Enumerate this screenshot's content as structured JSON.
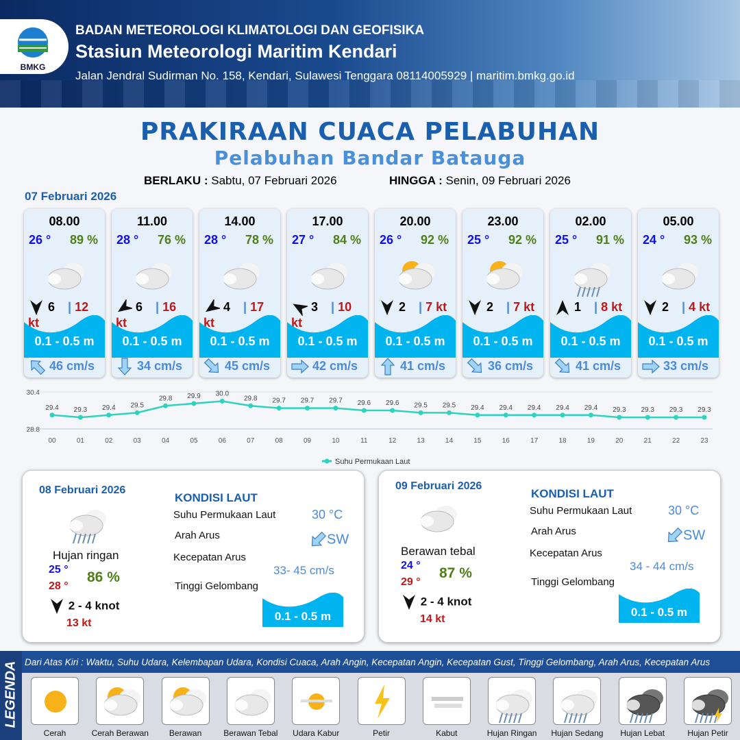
{
  "header": {
    "org": "BADAN METEOROLOGI KLIMATOLOGI DAN GEOFISIKA",
    "station": "Stasiun Meteorologi Maritim Kendari",
    "address": "Jalan Jendral Sudirman No. 158, Kendari, Sulawesi Tenggara  08114005929 | maritim.bmkg.go.id",
    "logo_text": "BMKG"
  },
  "title": "PRAKIRAAN CUACA PELABUHAN",
  "subtitle": "Pelabuhan Bandar Batauga",
  "validity": {
    "from_label": "BERLAKU :",
    "from": "Sabtu, 07 Februari 2026",
    "to_label": "HINGGA :",
    "to": "Senin, 09 Februari 2026"
  },
  "day1_label": "07 Februari 2026",
  "cards": [
    {
      "time": "08.00",
      "temp": "26 °",
      "hum": "89 %",
      "cond": "berawan-tebal",
      "wind_dir_deg": 180,
      "wind": "6",
      "gust": "12 kt",
      "wave": "0.1 - 0.5 m",
      "cur_dir_deg": 315,
      "cur": "46 cm/s"
    },
    {
      "time": "11.00",
      "temp": "28 °",
      "hum": "76 %",
      "cond": "berawan-tebal",
      "wind_dir_deg": 235,
      "wind": "6",
      "gust": "16 kt",
      "wave": "0.1 - 0.5 m",
      "cur_dir_deg": 180,
      "cur": "34 cm/s"
    },
    {
      "time": "14.00",
      "temp": "28 °",
      "hum": "78 %",
      "cond": "berawan-tebal",
      "wind_dir_deg": 235,
      "wind": "4",
      "gust": "17 kt",
      "wave": "0.1 - 0.5 m",
      "cur_dir_deg": 135,
      "cur": "45 cm/s"
    },
    {
      "time": "17.00",
      "temp": "27 °",
      "hum": "84 %",
      "cond": "berawan-tebal",
      "wind_dir_deg": 300,
      "wind": "3",
      "gust": "10 kt",
      "wave": "0.1 - 0.5 m",
      "cur_dir_deg": 90,
      "cur": "42 cm/s"
    },
    {
      "time": "20.00",
      "temp": "26 °",
      "hum": "92 %",
      "cond": "cerah-berawan",
      "wind_dir_deg": 180,
      "wind": "2",
      "gust": "7 kt",
      "wave": "0.1 - 0.5 m",
      "cur_dir_deg": 0,
      "cur": "41 cm/s"
    },
    {
      "time": "23.00",
      "temp": "25 °",
      "hum": "92 %",
      "cond": "cerah-berawan",
      "wind_dir_deg": 180,
      "wind": "2",
      "gust": "7 kt",
      "wave": "0.1 - 0.5 m",
      "cur_dir_deg": 135,
      "cur": "36 cm/s"
    },
    {
      "time": "02.00",
      "temp": "25 °",
      "hum": "91 %",
      "cond": "hujan-ringan",
      "wind_dir_deg": 0,
      "wind": "1",
      "gust": "8 kt",
      "wave": "0.1 - 0.5 m",
      "cur_dir_deg": 135,
      "cur": "41 cm/s"
    },
    {
      "time": "05.00",
      "temp": "24 °",
      "hum": "93 %",
      "cond": "berawan-tebal",
      "wind_dir_deg": 180,
      "wind": "2",
      "gust": "4 kt",
      "wave": "0.1 - 0.5 m",
      "cur_dir_deg": 90,
      "cur": "33 cm/s"
    }
  ],
  "chart_data": {
    "type": "line",
    "categories": [
      "00",
      "01",
      "02",
      "03",
      "04",
      "05",
      "06",
      "07",
      "08",
      "09",
      "10",
      "11",
      "12",
      "13",
      "14",
      "15",
      "16",
      "17",
      "18",
      "19",
      "20",
      "21",
      "22",
      "23"
    ],
    "series": [
      {
        "name": "Suhu Permukaan Laut",
        "values": [
          29.4,
          29.3,
          29.4,
          29.5,
          29.8,
          29.9,
          30.0,
          29.8,
          29.7,
          29.7,
          29.7,
          29.6,
          29.6,
          29.5,
          29.5,
          29.4,
          29.4,
          29.4,
          29.4,
          29.4,
          29.3,
          29.3,
          29.3,
          29.3
        ],
        "color": "#2ed3c0"
      }
    ],
    "ylim": [
      28.8,
      30.4
    ],
    "yticks": [
      "30.4",
      "28.8"
    ],
    "legend": "bottom",
    "grid": true
  },
  "panels": [
    {
      "date": "08 Februari 2026",
      "cond": "Hujan ringan",
      "icon": "hujan-ringan",
      "tmin": "25 °",
      "tmax": "28 °",
      "hum": "86 %",
      "wind": "2  - 4 knot",
      "gust": "13 kt",
      "heading": "KONDISI LAUT",
      "sst_label": "Suhu Permukaan Laut",
      "sst": "30 °C",
      "dir_label": "Arah Arus",
      "dir": "SW",
      "speed_label": "Kecepatan Arus",
      "speed": "33- 45 cm/s",
      "wave_label": "Tinggi Gelombang",
      "wave": "0.1 - 0.5 m"
    },
    {
      "date": "09 Februari 2026",
      "cond": "Berawan tebal",
      "icon": "berawan-tebal",
      "tmin": "24 °",
      "tmax": "29 °",
      "hum": "87 %",
      "wind": "2  - 4 knot",
      "gust": "14 kt",
      "heading": "KONDISI LAUT",
      "sst_label": "Suhu Permukaan Laut",
      "sst": "30 °C",
      "dir_label": "Arah Arus",
      "dir": "SW",
      "speed_label": "Kecepatan Arus",
      "speed": "34  - 44 cm/s",
      "wave_label": "Tinggi Gelombang",
      "wave": "0.1 - 0.5 m"
    }
  ],
  "legend": {
    "title": "LEGENDA",
    "description": "Dari Atas Kiri : Waktu, Suhu Udara, Kelembapan Udara, Kondisi Cuaca, Arah Angin, Kecepatan Angin, Kecepatan Gust, Tinggi Gelombang, Arah Arus, Kecepatan Arus",
    "items": [
      {
        "name": "Cerah",
        "icon": "cerah"
      },
      {
        "name": "Cerah Berawan",
        "icon": "cerah-berawan"
      },
      {
        "name": "Berawan",
        "icon": "berawan"
      },
      {
        "name": "Berawan Tebal",
        "icon": "berawan-tebal"
      },
      {
        "name": "Udara Kabur",
        "icon": "udara-kabur"
      },
      {
        "name": "Petir",
        "icon": "petir"
      },
      {
        "name": "Kabut",
        "icon": "kabut"
      },
      {
        "name": "Hujan Ringan",
        "icon": "hujan-ringan"
      },
      {
        "name": "Hujan Sedang",
        "icon": "hujan-sedang"
      },
      {
        "name": "Hujan Lebat",
        "icon": "hujan-lebat"
      },
      {
        "name": "Hujan Petir",
        "icon": "hujan-petir"
      }
    ]
  }
}
